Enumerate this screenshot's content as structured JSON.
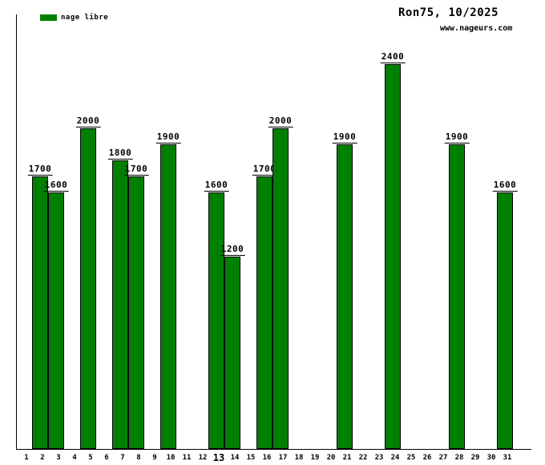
{
  "chart_data": {
    "type": "bar",
    "title": "Ron75, 10/2025",
    "watermark": "www.nageurs.com",
    "legend": [
      {
        "name": "nage libre",
        "color": "#008000"
      }
    ],
    "legend_position": "top-left",
    "categories": [
      "1",
      "2",
      "3",
      "4",
      "5",
      "6",
      "7",
      "8",
      "9",
      "10",
      "11",
      "12",
      "13",
      "14",
      "15",
      "16",
      "17",
      "18",
      "19",
      "20",
      "21",
      "22",
      "23",
      "24",
      "25",
      "26",
      "27",
      "28",
      "29",
      "30",
      "31"
    ],
    "values": [
      null,
      1700,
      1600,
      null,
      2000,
      null,
      1800,
      1700,
      null,
      1900,
      null,
      null,
      1600,
      1200,
      null,
      1700,
      2000,
      null,
      null,
      null,
      1900,
      null,
      null,
      2400,
      null,
      null,
      null,
      1900,
      null,
      null,
      1600
    ],
    "value_labels_shown": true,
    "highlighted_category": "13",
    "bar_color": "#008000",
    "bar_border_color": "#000000",
    "axis_color": "#000000",
    "background_color": "#ffffff",
    "grid": false,
    "xlabel": "",
    "ylabel": "",
    "ylim": [
      0,
      2710
    ]
  }
}
